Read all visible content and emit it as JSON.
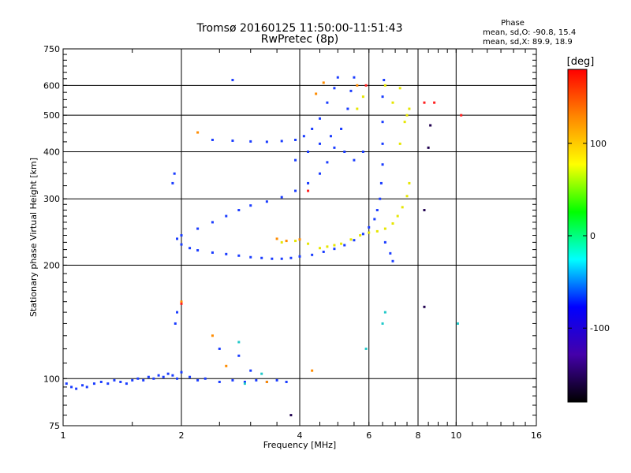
{
  "chart_data": {
    "type": "scatter",
    "title": "Tromsø 20160125 11:50:00-11:51:43",
    "subtitle": "RwPretec (8p)",
    "phase_box": {
      "title": "Phase",
      "line_o": "mean, sd,O: -90.8, 15.4",
      "line_x": "mean, sd,X:  89.9, 18.9"
    },
    "xlabel": "Frequency [MHz]",
    "ylabel": "Stationary phase Virtual Height [km]",
    "x_scale": "log",
    "y_scale": "log",
    "xlim": [
      1,
      16
    ],
    "ylim": [
      75,
      750
    ],
    "x_ticks": [
      1,
      2,
      4,
      6,
      8,
      10,
      16
    ],
    "x_tick_labels": [
      "1",
      "2",
      "4",
      "6",
      "8",
      "10",
      "16"
    ],
    "y_ticks": [
      75,
      100,
      200,
      300,
      400,
      500,
      600,
      750
    ],
    "y_tick_labels": [
      "75",
      "100",
      "200",
      "300",
      "400",
      "500",
      "600",
      "750"
    ],
    "grid": true,
    "colorbar": {
      "label": "[deg]",
      "range": [
        -180,
        180
      ],
      "ticks": [
        100,
        0,
        -100
      ],
      "tick_labels": [
        "100",
        "0",
        "-100"
      ],
      "colors": [
        "#ff0000",
        "#ff8800",
        "#ffff00",
        "#00ff00",
        "#00ffff",
        "#0000ff",
        "#4400aa",
        "#000000"
      ]
    },
    "series": [
      {
        "name": "",
        "color": "#1a3cff",
        "points": [
          [
            1.02,
            97
          ],
          [
            1.05,
            95
          ],
          [
            1.08,
            94
          ],
          [
            1.12,
            96
          ],
          [
            1.15,
            95
          ],
          [
            1.2,
            97
          ],
          [
            1.25,
            98
          ],
          [
            1.3,
            97
          ],
          [
            1.35,
            99
          ],
          [
            1.4,
            98
          ],
          [
            1.45,
            97
          ],
          [
            1.5,
            99
          ],
          [
            1.55,
            100
          ],
          [
            1.6,
            99
          ],
          [
            1.65,
            101
          ],
          [
            1.7,
            100
          ],
          [
            1.75,
            102
          ],
          [
            1.8,
            101
          ],
          [
            1.85,
            103
          ],
          [
            1.9,
            102
          ],
          [
            1.95,
            100
          ],
          [
            2.0,
            104
          ],
          [
            2.1,
            101
          ],
          [
            2.2,
            99
          ],
          [
            2.3,
            100
          ],
          [
            2.5,
            98
          ],
          [
            2.7,
            99
          ],
          [
            2.9,
            98
          ],
          [
            3.1,
            99
          ],
          [
            3.3,
            98
          ],
          [
            3.5,
            99
          ],
          [
            3.7,
            98
          ],
          [
            1.93,
            140
          ],
          [
            1.95,
            150
          ],
          [
            1.9,
            330
          ],
          [
            1.92,
            350
          ],
          [
            1.95,
            235
          ],
          [
            2.0,
            227
          ],
          [
            2.1,
            222
          ],
          [
            2.2,
            219
          ],
          [
            2.4,
            216
          ],
          [
            2.6,
            214
          ],
          [
            2.8,
            212
          ],
          [
            3.0,
            210
          ],
          [
            3.2,
            209
          ],
          [
            3.4,
            208
          ],
          [
            3.6,
            208
          ],
          [
            3.8,
            209
          ],
          [
            4.0,
            211
          ],
          [
            4.3,
            213
          ],
          [
            4.6,
            217
          ],
          [
            4.9,
            221
          ],
          [
            5.2,
            226
          ],
          [
            5.5,
            233
          ],
          [
            5.8,
            242
          ],
          [
            6.0,
            252
          ],
          [
            6.2,
            265
          ],
          [
            6.3,
            280
          ],
          [
            6.4,
            300
          ],
          [
            6.45,
            330
          ],
          [
            6.5,
            370
          ],
          [
            6.5,
            420
          ],
          [
            6.5,
            480
          ],
          [
            6.5,
            560
          ],
          [
            6.55,
            620
          ],
          [
            2.0,
            240
          ],
          [
            2.2,
            250
          ],
          [
            2.4,
            260
          ],
          [
            2.6,
            270
          ],
          [
            2.8,
            280
          ],
          [
            3.0,
            288
          ],
          [
            3.3,
            295
          ],
          [
            3.6,
            303
          ],
          [
            3.9,
            315
          ],
          [
            4.2,
            330
          ],
          [
            4.5,
            350
          ],
          [
            4.7,
            375
          ],
          [
            4.9,
            410
          ],
          [
            5.1,
            460
          ],
          [
            5.3,
            520
          ],
          [
            5.4,
            580
          ],
          [
            5.5,
            630
          ],
          [
            2.4,
            430
          ],
          [
            2.7,
            428
          ],
          [
            3.0,
            426
          ],
          [
            3.3,
            425
          ],
          [
            3.6,
            427
          ],
          [
            3.9,
            430
          ],
          [
            4.1,
            440
          ],
          [
            4.3,
            460
          ],
          [
            4.5,
            490
          ],
          [
            4.7,
            540
          ],
          [
            4.9,
            590
          ],
          [
            5.0,
            630
          ],
          [
            3.9,
            380
          ],
          [
            4.2,
            400
          ],
          [
            4.5,
            420
          ],
          [
            4.8,
            440
          ],
          [
            5.2,
            400
          ],
          [
            5.5,
            380
          ],
          [
            5.8,
            400
          ],
          [
            6.6,
            230
          ],
          [
            6.8,
            215
          ],
          [
            6.9,
            205
          ],
          [
            2.7,
            620
          ],
          [
            2.5,
            120
          ],
          [
            2.8,
            115
          ],
          [
            3.0,
            105
          ]
        ]
      },
      {
        "name": "",
        "color": "#e6e600",
        "points": [
          [
            4.5,
            222
          ],
          [
            4.7,
            224
          ],
          [
            4.9,
            226
          ],
          [
            5.1,
            228
          ],
          [
            5.4,
            234
          ],
          [
            5.7,
            240
          ],
          [
            6.0,
            244
          ],
          [
            6.3,
            246
          ],
          [
            6.6,
            250
          ],
          [
            6.9,
            258
          ],
          [
            7.1,
            270
          ],
          [
            7.3,
            285
          ],
          [
            7.5,
            305
          ],
          [
            7.6,
            330
          ],
          [
            7.2,
            420
          ],
          [
            7.4,
            480
          ],
          [
            7.5,
            500
          ],
          [
            7.6,
            520
          ],
          [
            7.2,
            590
          ],
          [
            6.9,
            540
          ],
          [
            6.6,
            600
          ],
          [
            5.6,
            520
          ],
          [
            5.8,
            560
          ],
          [
            3.6,
            230
          ],
          [
            3.9,
            232
          ],
          [
            4.2,
            228
          ]
        ]
      },
      {
        "name": "",
        "color": "#ff8c00",
        "points": [
          [
            3.5,
            235
          ],
          [
            3.7,
            232
          ],
          [
            4.0,
            234
          ],
          [
            4.4,
            570
          ],
          [
            4.6,
            610
          ],
          [
            5.6,
            600
          ],
          [
            2.2,
            450
          ],
          [
            2.6,
            108
          ],
          [
            2.4,
            130
          ],
          [
            4.3,
            105
          ],
          [
            2.0,
            160
          ],
          [
            3.3,
            98
          ]
        ]
      },
      {
        "name": "",
        "color": "#ff2020",
        "points": [
          [
            8.3,
            540
          ],
          [
            8.8,
            540
          ],
          [
            10.3,
            500
          ],
          [
            5.9,
            600
          ],
          [
            2.0,
            158
          ],
          [
            4.2,
            315
          ]
        ]
      },
      {
        "name": "",
        "color": "#20c8c8",
        "points": [
          [
            6.6,
            150
          ],
          [
            6.5,
            140
          ],
          [
            5.9,
            120
          ],
          [
            2.8,
            125
          ],
          [
            3.2,
            103
          ],
          [
            10.1,
            140
          ],
          [
            2.9,
            97
          ]
        ]
      },
      {
        "name": "",
        "color": "#200050",
        "points": [
          [
            8.3,
            155
          ],
          [
            8.3,
            280
          ],
          [
            8.5,
            410
          ],
          [
            8.6,
            470
          ],
          [
            3.8,
            80
          ]
        ]
      }
    ]
  }
}
